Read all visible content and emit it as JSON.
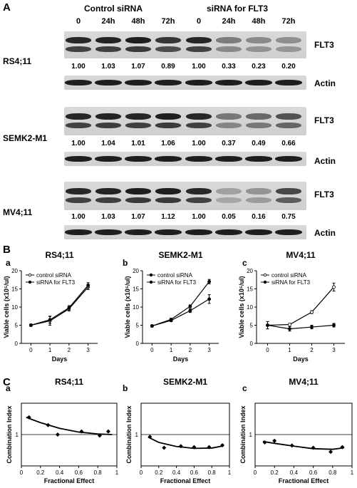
{
  "panel_a": {
    "letter": "A",
    "group_labels": [
      "Control siRNA",
      "siRNA for FLT3"
    ],
    "lanes": [
      "0",
      "24h",
      "48h",
      "72h",
      "0",
      "24h",
      "48h",
      "72h"
    ],
    "protein_label": "FLT3",
    "loading_label": "Actin",
    "cell_lines": [
      {
        "name": "RS4;11",
        "ratios": [
          "1.00",
          "1.03",
          "1.07",
          "0.89",
          "1.00",
          "0.33",
          "0.23",
          "0.20"
        ]
      },
      {
        "name": "SEMK2-M1",
        "ratios": [
          "1.00",
          "1.04",
          "1.01",
          "1.06",
          "1.00",
          "0.37",
          "0.49",
          "0.66"
        ]
      },
      {
        "name": "MV4;11",
        "ratios": [
          "1.00",
          "1.03",
          "1.07",
          "1.12",
          "1.00",
          "0.05",
          "0.16",
          "0.75"
        ]
      }
    ]
  },
  "panel_b": {
    "letter": "B",
    "chart_data": [
      {
        "type": "line",
        "sub": "a",
        "title": "RS4;11",
        "xlabel": "Days",
        "ylabel": "Viable cells (x10⁵/ul)",
        "x": [
          0,
          1,
          2,
          3
        ],
        "xlim": [
          -0.5,
          3.5
        ],
        "ylim": [
          0,
          20
        ],
        "xticks": [
          "0",
          "1",
          "2",
          "3"
        ],
        "yticks": [
          "0",
          "5",
          "10",
          "15",
          "20"
        ],
        "series": [
          {
            "name": "control siRNA",
            "marker": "open",
            "values": [
              5.0,
              6.2,
              9.5,
              15.5
            ],
            "err": [
              0.3,
              1.2,
              0.6,
              0.7
            ]
          },
          {
            "name": "siRNA for FLT3",
            "marker": "filled",
            "values": [
              5.0,
              6.5,
              9.8,
              16.0
            ],
            "err": [
              0.3,
              1.0,
              0.6,
              0.7
            ]
          }
        ],
        "legend": "top-left"
      },
      {
        "type": "line",
        "sub": "b",
        "title": "SEMK2-M1",
        "xlabel": "Days",
        "ylabel": "Viable cells (x10⁵/ul)",
        "x": [
          0,
          1,
          2,
          3
        ],
        "xlim": [
          -0.5,
          3.5
        ],
        "ylim": [
          0,
          20
        ],
        "xticks": [
          "0",
          "1",
          "2",
          "3"
        ],
        "yticks": [
          "0",
          "5",
          "10",
          "15",
          "20"
        ],
        "series": [
          {
            "name": "control siRNA",
            "marker": "filled",
            "values": [
              4.8,
              6.6,
              10.2,
              17.0
            ],
            "err": [
              0.3,
              0.3,
              0.4,
              0.6
            ]
          },
          {
            "name": "siRNA for FLT3",
            "marker": "filled",
            "values": [
              4.8,
              6.3,
              9.0,
              12.2
            ],
            "err": [
              0.3,
              0.3,
              0.5,
              1.2
            ]
          }
        ],
        "legend": "top-left"
      },
      {
        "type": "line",
        "sub": "c",
        "title": "MV4;11",
        "xlabel": "Days",
        "ylabel": "Viable cells (x10⁵/ul)",
        "x": [
          0,
          1,
          2,
          3
        ],
        "xlim": [
          -0.5,
          3.5
        ],
        "ylim": [
          0,
          20
        ],
        "xticks": [
          "0",
          "1",
          "2",
          "3"
        ],
        "yticks": [
          "0",
          "5",
          "10",
          "15",
          "20"
        ],
        "series": [
          {
            "name": "control siRNA",
            "marker": "open",
            "values": [
              5.0,
              5.2,
              8.6,
              15.5
            ],
            "err": [
              1.0,
              0.3,
              0.4,
              1.1
            ]
          },
          {
            "name": "siRNA for FLT3",
            "marker": "filled",
            "values": [
              5.0,
              4.0,
              4.5,
              5.0
            ],
            "err": [
              1.0,
              0.6,
              0.5,
              0.5
            ]
          }
        ],
        "legend": "top-left"
      }
    ]
  },
  "panel_c": {
    "letter": "C",
    "chart_data": [
      {
        "type": "scatter",
        "sub": "a",
        "title": "RS4;11",
        "xlabel": "Fractional Effect",
        "ylabel": "Combination Index",
        "xlim": [
          0,
          1
        ],
        "ylim": [
          0,
          2
        ],
        "xticks": [
          "0",
          "0.2",
          "0.4",
          "0.6",
          "0.8",
          "1"
        ],
        "yticks": [
          "1"
        ],
        "reference_line": 1,
        "points": {
          "x": [
            0.08,
            0.28,
            0.38,
            0.63,
            0.82,
            0.91
          ],
          "y": [
            1.55,
            1.3,
            1.0,
            1.1,
            0.97,
            1.1
          ]
        },
        "fit": {
          "x": [
            0.05,
            0.2,
            0.4,
            0.6,
            0.8,
            0.95
          ],
          "y": [
            1.55,
            1.38,
            1.2,
            1.08,
            1.02,
            1.0
          ]
        }
      },
      {
        "type": "scatter",
        "sub": "b",
        "title": "SEMK2-M1",
        "xlabel": "Fractional Effect",
        "ylabel": "Combination Index",
        "xlim": [
          0,
          1
        ],
        "ylim": [
          0,
          2
        ],
        "xticks": [
          "0",
          "0.2",
          "0.4",
          "0.6",
          "0.8",
          "1"
        ],
        "yticks": [
          "1"
        ],
        "reference_line": 1,
        "points": {
          "x": [
            0.1,
            0.26,
            0.45,
            0.6,
            0.77,
            0.92
          ],
          "y": [
            0.93,
            0.58,
            0.63,
            0.6,
            0.6,
            0.66
          ]
        },
        "fit": {
          "x": [
            0.08,
            0.2,
            0.4,
            0.6,
            0.8,
            0.93
          ],
          "y": [
            0.92,
            0.75,
            0.62,
            0.56,
            0.57,
            0.64
          ]
        }
      },
      {
        "type": "scatter",
        "sub": "c",
        "title": "MV4;11",
        "xlabel": "Fractional Effect",
        "ylabel": "Combination Index",
        "xlim": [
          0,
          1
        ],
        "ylim": [
          0,
          2
        ],
        "xticks": [
          "0",
          "0.2",
          "0.4",
          "0.6",
          "0.8",
          "1"
        ],
        "yticks": [
          "1"
        ],
        "reference_line": 1,
        "points": {
          "x": [
            0.1,
            0.2,
            0.38,
            0.6,
            0.78,
            0.9
          ],
          "y": [
            0.75,
            0.8,
            0.65,
            0.58,
            0.45,
            0.6
          ]
        },
        "fit": {
          "x": [
            0.08,
            0.2,
            0.4,
            0.6,
            0.8,
            0.92
          ],
          "y": [
            0.78,
            0.72,
            0.63,
            0.55,
            0.53,
            0.58
          ]
        }
      }
    ]
  }
}
